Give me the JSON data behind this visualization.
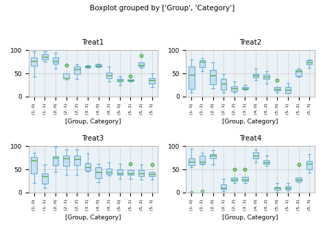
{
  "title": "Boxplot grouped by ['Group', 'Category']",
  "subplot_titles": [
    "Treat1",
    "Treat2",
    "Treat3",
    "Treat4"
  ],
  "xlabel": "[Group, Category]",
  "xtick_labels": [
    "(1, 0)",
    "(1, 1)",
    "(2, 0)",
    "(2, 1)",
    "(2, 2)",
    "(3, 1)",
    "(4, 0)",
    "(4, 2)",
    "(5, 0)",
    "(5, 1)",
    "(5, 2)",
    "(5, 3)"
  ],
  "ylim": [
    0,
    100
  ],
  "n_groups": 12,
  "box_facecolor": "#c6dff0",
  "box_edgecolor": "#6aadd5",
  "median_color": "#4daf4a",
  "whisker_color": "#6aadd5",
  "cap_color": "#6aadd5",
  "flier_color": "#4daf4a",
  "flier_marker": "o",
  "bg_color": "#eaf2f8",
  "figsize": [
    4.74,
    3.37
  ],
  "dpi": 100,
  "box_data": {
    "Treat1": [
      [
        60,
        72,
        77,
        84,
        97
      ],
      [
        75,
        80,
        85,
        91,
        97
      ],
      [
        60,
        73,
        76,
        84,
        95
      ],
      [
        37,
        40,
        40,
        50,
        68
      ],
      [
        38,
        50,
        59,
        65,
        69
      ],
      [
        62,
        64,
        65,
        67,
        68
      ],
      [
        63,
        65,
        67,
        69,
        70
      ],
      [
        33,
        40,
        45,
        52,
        65
      ],
      [
        25,
        33,
        35,
        38,
        44
      ],
      [
        32,
        34,
        35,
        37,
        44
      ],
      [
        62,
        66,
        68,
        73,
        89
      ],
      [
        20,
        29,
        35,
        39,
        50
      ]
    ],
    "Treat2": [
      [
        8,
        18,
        47,
        65,
        80
      ],
      [
        55,
        65,
        75,
        78,
        82
      ],
      [
        18,
        28,
        45,
        58,
        73
      ],
      [
        8,
        15,
        28,
        38,
        48
      ],
      [
        8,
        13,
        17,
        22,
        33
      ],
      [
        14,
        16,
        17,
        20,
        25
      ],
      [
        35,
        42,
        45,
        49,
        60
      ],
      [
        28,
        39,
        43,
        47,
        55
      ],
      [
        9,
        13,
        16,
        20,
        35
      ],
      [
        7,
        8,
        15,
        20,
        30
      ],
      [
        42,
        44,
        54,
        57,
        60
      ],
      [
        62,
        70,
        73,
        78,
        80
      ]
    ],
    "Treat3": [
      [
        20,
        45,
        70,
        77,
        86
      ],
      [
        10,
        20,
        35,
        42,
        60
      ],
      [
        44,
        62,
        75,
        78,
        99
      ],
      [
        38,
        60,
        74,
        80,
        93
      ],
      [
        38,
        62,
        73,
        80,
        93
      ],
      [
        46,
        48,
        55,
        63,
        84
      ],
      [
        22,
        33,
        45,
        55,
        62
      ],
      [
        37,
        41,
        44,
        52,
        65
      ],
      [
        30,
        40,
        42,
        50,
        62
      ],
      [
        30,
        40,
        42,
        48,
        62
      ],
      [
        28,
        37,
        42,
        48,
        60
      ],
      [
        28,
        37,
        40,
        45,
        60
      ]
    ],
    "Treat4": [
      [
        55,
        63,
        67,
        74,
        95
      ],
      [
        60,
        65,
        67,
        80,
        85
      ],
      [
        60,
        75,
        80,
        82,
        92
      ],
      [
        3,
        8,
        10,
        18,
        30
      ],
      [
        20,
        25,
        28,
        33,
        50
      ],
      [
        20,
        25,
        28,
        34,
        50
      ],
      [
        65,
        75,
        80,
        87,
        93
      ],
      [
        58,
        63,
        65,
        70,
        80
      ],
      [
        2,
        7,
        10,
        12,
        20
      ],
      [
        4,
        8,
        10,
        13,
        20
      ],
      [
        22,
        25,
        28,
        33,
        60
      ],
      [
        43,
        52,
        62,
        68,
        82
      ]
    ]
  },
  "flier_data": {
    "Treat1": [
      [
        42
      ],
      [],
      [],
      [],
      [],
      [],
      [],
      [],
      [],
      [],
      [],
      []
    ],
    "Treat2": [
      [],
      [],
      [],
      [],
      [],
      [],
      [],
      [],
      [],
      [],
      [],
      []
    ],
    "Treat3": [
      [],
      [],
      [],
      [],
      [],
      [],
      [],
      [],
      [],
      [],
      [],
      []
    ],
    "Treat4": [
      [
        0
      ],
      [
        3
      ],
      [],
      [],
      [],
      [],
      [],
      [],
      [],
      [],
      [],
      []
    ]
  }
}
